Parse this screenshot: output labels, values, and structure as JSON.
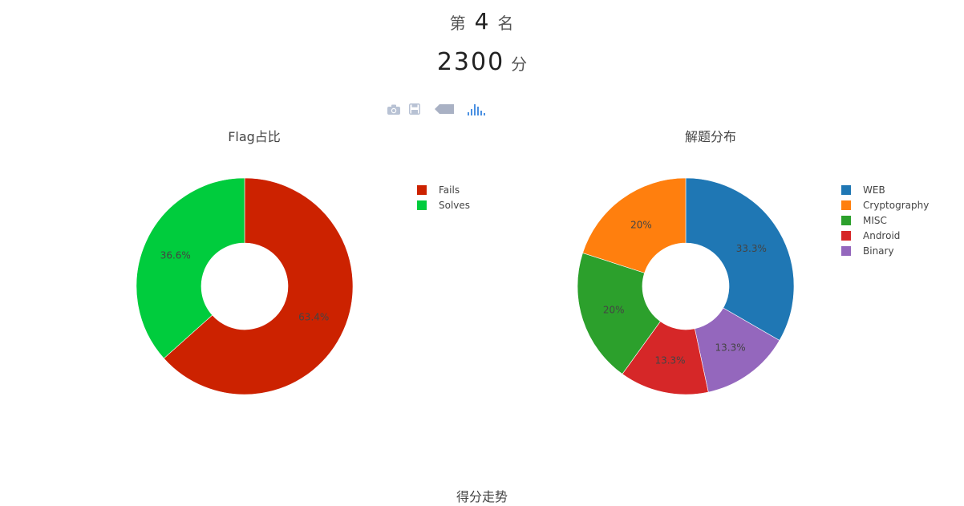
{
  "header": {
    "rank_prefix": "第",
    "rank_value": "4",
    "rank_suffix": "名",
    "score_value": "2300",
    "score_unit": "分"
  },
  "modebar": {
    "icons": [
      "camera-icon",
      "save-icon",
      "zoom-back-icon",
      "bar-chart-icon"
    ]
  },
  "bottom_title": "得分走势",
  "chart_data": [
    {
      "type": "pie",
      "title": "Flag占比",
      "hole": 0.4,
      "labels": [
        "Fails",
        "Solves"
      ],
      "values": [
        63.4,
        36.6
      ],
      "text_labels": [
        "63.4%",
        "36.6%"
      ],
      "colors": [
        "#cc2200",
        "#00cc3d"
      ],
      "legend_placement": "right"
    },
    {
      "type": "pie",
      "title": "解题分布",
      "hole": 0.4,
      "labels": [
        "WEB",
        "Binary",
        "Android",
        "MISC",
        "Cryptography"
      ],
      "values": [
        33.3,
        13.3,
        13.3,
        20,
        20
      ],
      "text_labels": [
        "33.3%",
        "13.3%",
        "13.3%",
        "20%",
        "20%"
      ],
      "colors": [
        "#1f77b4",
        "#9467bd",
        "#d62728",
        "#2ca02c",
        "#ff7f0e"
      ],
      "legend": [
        "WEB",
        "Cryptography",
        "MISC",
        "Android",
        "Binary"
      ],
      "legend_colors": [
        "#1f77b4",
        "#ff7f0e",
        "#2ca02c",
        "#d62728",
        "#9467bd"
      ],
      "legend_placement": "right"
    }
  ]
}
